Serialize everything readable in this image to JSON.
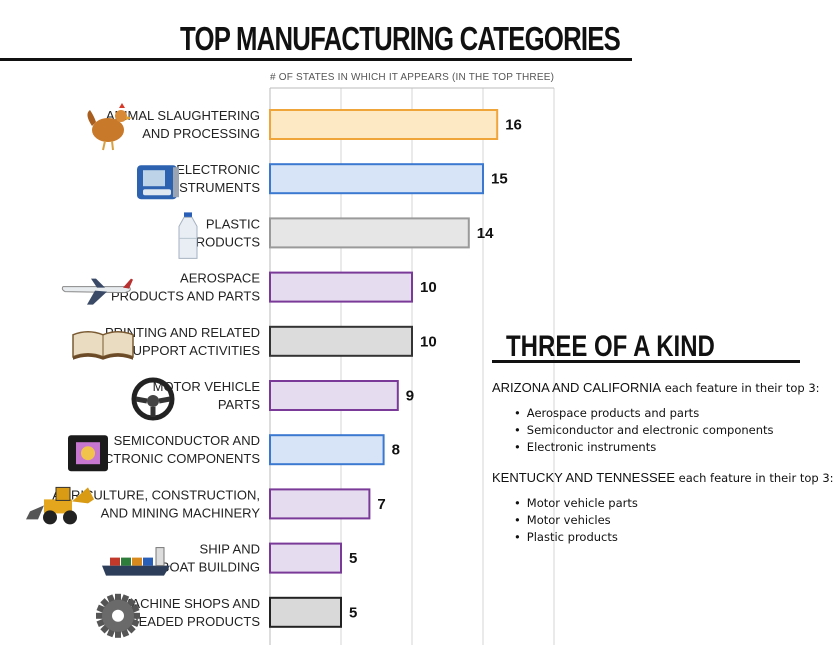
{
  "page": {
    "title": "TOP MANUFACTURING CATEGORIES"
  },
  "chart_data": {
    "type": "bar",
    "orientation": "horizontal",
    "xlabel": "# OF STATES IN WHICH IT APPEARS (IN THE TOP THREE)",
    "xlim": [
      0,
      20
    ],
    "grid": true,
    "categories": [
      [
        "ANIMAL SLAUGHTERING",
        "AND PROCESSING"
      ],
      [
        "ELECTRONIC",
        "INSTRUMENTS"
      ],
      [
        "PLASTIC",
        "PRODUCTS"
      ],
      [
        "AEROSPACE",
        "PRODUCTS AND PARTS"
      ],
      [
        "PRINTING AND RELATED",
        "SUPPORT ACTIVITIES"
      ],
      [
        "MOTOR VEHICLE",
        "PARTS"
      ],
      [
        "SEMICONDUCTOR AND",
        "ELECTRONIC COMPONENTS"
      ],
      [
        "AGRICULTURE, CONSTRUCTION,",
        "AND MINING MACHINERY"
      ],
      [
        "SHIP AND",
        "BOAT BUILDING"
      ],
      [
        "MACHINE SHOPS AND",
        "THREADED PRODUCTS"
      ]
    ],
    "values": [
      16,
      15,
      14,
      10,
      10,
      9,
      8,
      7,
      5,
      5
    ],
    "bar_fills": [
      "#fde9c4",
      "#d7e3f7",
      "#e6e6e6",
      "#e6dcef",
      "#dcdcdc",
      "#e6dcef",
      "#d7e3f7",
      "#e6dcef",
      "#e6dcef",
      "#d9d9d9"
    ],
    "bar_strokes": [
      "#f0a53a",
      "#3b78d0",
      "#9a9a9a",
      "#7a3a98",
      "#333333",
      "#7a3a98",
      "#3b78d0",
      "#7a3a98",
      "#7a3a98",
      "#222222"
    ],
    "icons": [
      "chicken-icon",
      "blood-pressure-monitor-icon",
      "water-bottle-icon",
      "airplane-icon",
      "open-book-icon",
      "steering-wheel-icon",
      "microchip-icon",
      "backhoe-loader-icon",
      "cargo-ship-icon",
      "gear-icon"
    ]
  },
  "sidebar": {
    "title": "THREE OF A KIND",
    "groups": [
      {
        "states": "ARIZONA AND CALIFORNIA",
        "text": "each feature in their top 3:",
        "items": [
          "Aerospace products and parts",
          "Semiconductor and electronic components",
          "Electronic instruments"
        ]
      },
      {
        "states": "KENTUCKY AND TENNESSEE",
        "text": "each feature in their top 3:",
        "items": [
          "Motor vehicle parts",
          "Motor vehicles",
          "Plastic products"
        ]
      }
    ]
  }
}
